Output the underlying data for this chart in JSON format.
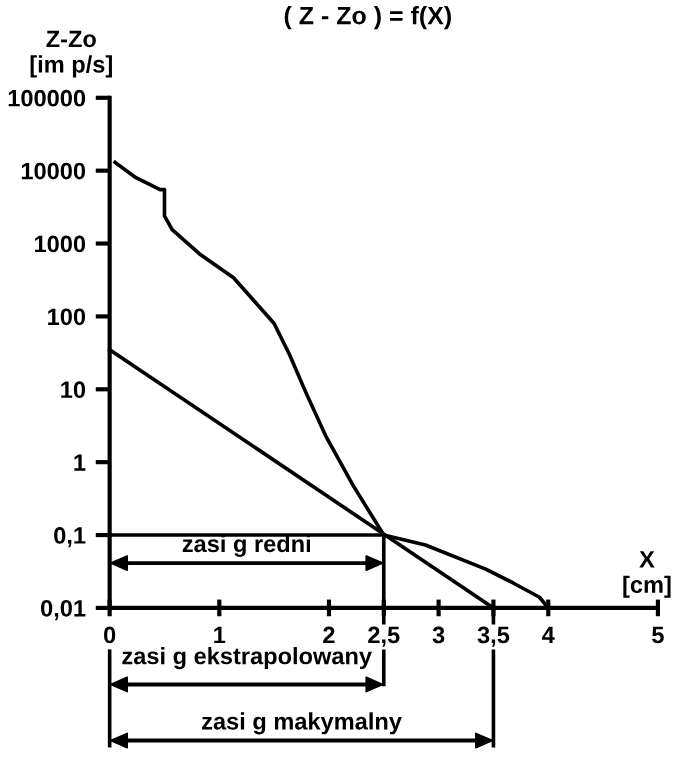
{
  "chart_data": {
    "type": "line",
    "title": "( Z - Zo ) = f(X)",
    "xlabel": "X\n[cm]",
    "ylabel": "Z-Zo\n[im p/s]",
    "series": [
      {
        "color": "#000000",
        "x": [
          0.05,
          0.24,
          0.46,
          0.5,
          0.5,
          0.57,
          0.82,
          1.13,
          1.5,
          1.64,
          1.79,
          1.97,
          2.22,
          2.5,
          2.88,
          3.43,
          3.68,
          3.92,
          4.0
        ],
        "values": [
          13000,
          8000,
          5500,
          5500,
          2400,
          1550,
          720,
          340,
          80,
          30,
          9,
          2.3,
          0.48,
          0.1,
          0.073,
          0.034,
          0.022,
          0.014,
          0.01
        ]
      },
      {
        "color": "#000000",
        "x": [
          0,
          3.5
        ],
        "values": [
          35,
          0.01
        ]
      }
    ],
    "log": "y",
    "xlim": [
      0,
      5
    ],
    "ylim": [
      0.01,
      100000
    ],
    "xticks": [
      0,
      1,
      2,
      {
        "value": 2.5,
        "label": "2,5"
      },
      3,
      {
        "value": 3.5,
        "label": "3,5"
      },
      4,
      5
    ],
    "yticks": [
      {
        "value": 0.01,
        "label": "0,01"
      },
      {
        "value": 0.1,
        "label": "0,1"
      },
      1,
      10,
      100,
      1000,
      10000,
      100000
    ],
    "ref_lines": [
      {
        "axis": "y",
        "value": 0.1,
        "color": "#000000"
      },
      {
        "axis": "x",
        "value": 2.5,
        "color": "#000000"
      }
    ],
    "annotations": [
      "zasi g redni",
      "zasi g ekstrapolowany",
      "zasi g makymalny"
    ],
    "grid": false,
    "legend": false,
    "marker": "none",
    "line_style": "solid"
  }
}
